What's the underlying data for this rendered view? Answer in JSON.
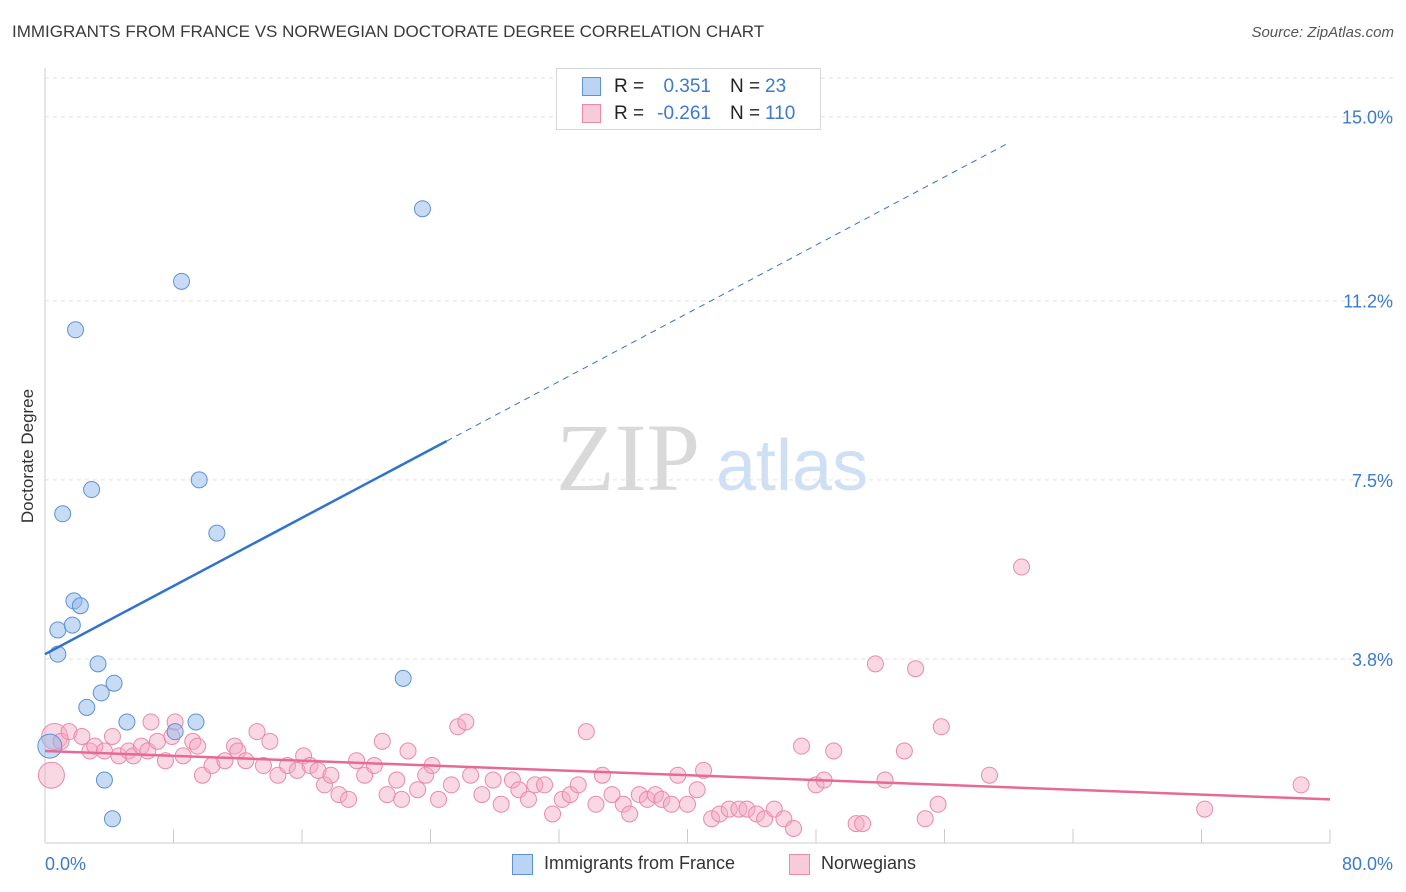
{
  "title": "IMMIGRANTS FROM FRANCE VS NORWEGIAN DOCTORATE DEGREE CORRELATION CHART",
  "source": "Source: ZipAtlas.com",
  "watermark": {
    "zip": "ZIP",
    "atlas": "atlas"
  },
  "legend_top": {
    "rows": [
      {
        "r_label": "R =",
        "r_value": "0.351",
        "n_label": "N =",
        "n_value": "23",
        "color": "#8fb8ec"
      },
      {
        "r_label": "R =",
        "r_value": "-0.261",
        "n_label": "N =",
        "n_value": "110",
        "color": "#f4a9c0"
      }
    ]
  },
  "legend_bottom": {
    "items": [
      {
        "label": "Immigrants from France",
        "color": "#8fb8ec"
      },
      {
        "label": "Norwegians",
        "color": "#f4a9c0"
      }
    ]
  },
  "chart_data": {
    "type": "scatter",
    "title": "IMMIGRANTS FROM FRANCE VS NORWEGIAN DOCTORATE DEGREE CORRELATION CHART",
    "xlabel": "",
    "ylabel": "Doctorate Degree",
    "xlim": [
      0,
      80
    ],
    "ylim": [
      0,
      15.8
    ],
    "x_tick_labels": [
      {
        "value": 0,
        "label": "0.0%"
      },
      {
        "value": 80,
        "label": "80.0%"
      }
    ],
    "y_tick_labels": [
      {
        "value": 3.8,
        "label": "3.8%"
      },
      {
        "value": 7.5,
        "label": "7.5%"
      },
      {
        "value": 11.2,
        "label": "11.2%"
      },
      {
        "value": 15.0,
        "label": "15.0%"
      }
    ],
    "grid": true,
    "series": [
      {
        "name": "Immigrants from France",
        "color": "#8fb8ec",
        "stroke": "#5b92d8",
        "line_color": "#2f72d0",
        "trend": {
          "x0": 0,
          "y0": 3.9,
          "x1": 25,
          "y1": 8.3,
          "extend_to_x": 60
        },
        "points": [
          [
            0.3,
            2.0
          ],
          [
            0.8,
            3.9
          ],
          [
            0.8,
            4.4
          ],
          [
            1.7,
            4.5
          ],
          [
            1.8,
            5.0
          ],
          [
            2.2,
            4.9
          ],
          [
            1.1,
            6.8
          ],
          [
            2.9,
            7.3
          ],
          [
            1.9,
            10.6
          ],
          [
            8.5,
            11.6
          ],
          [
            23.5,
            13.1
          ],
          [
            9.6,
            7.5
          ],
          [
            10.7,
            6.4
          ],
          [
            3.3,
            3.7
          ],
          [
            2.6,
            2.8
          ],
          [
            4.3,
            3.3
          ],
          [
            3.5,
            3.1
          ],
          [
            5.1,
            2.5
          ],
          [
            9.4,
            2.5
          ],
          [
            8.1,
            2.3
          ],
          [
            22.3,
            3.4
          ],
          [
            3.7,
            1.3
          ],
          [
            4.2,
            0.5
          ]
        ]
      },
      {
        "name": "Norwegians",
        "color": "#f4a9c0",
        "stroke": "#e98aa8",
        "line_color": "#e76a93",
        "trend": {
          "x0": 0,
          "y0": 1.9,
          "x1": 80,
          "y1": 0.9
        },
        "points": [
          [
            0.4,
            1.4
          ],
          [
            0.6,
            2.2
          ],
          [
            1.0,
            2.1
          ],
          [
            1.5,
            2.3
          ],
          [
            2.3,
            2.2
          ],
          [
            2.8,
            1.9
          ],
          [
            3.1,
            2.0
          ],
          [
            3.7,
            1.9
          ],
          [
            4.2,
            2.2
          ],
          [
            4.6,
            1.8
          ],
          [
            5.2,
            1.9
          ],
          [
            5.5,
            1.8
          ],
          [
            6.0,
            2.0
          ],
          [
            6.4,
            1.9
          ],
          [
            6.6,
            2.5
          ],
          [
            7.0,
            2.1
          ],
          [
            7.5,
            1.7
          ],
          [
            7.9,
            2.2
          ],
          [
            8.1,
            2.5
          ],
          [
            8.6,
            1.8
          ],
          [
            9.2,
            2.1
          ],
          [
            9.5,
            2.0
          ],
          [
            9.8,
            1.4
          ],
          [
            10.4,
            1.6
          ],
          [
            11.2,
            1.7
          ],
          [
            11.8,
            2.0
          ],
          [
            12.0,
            1.9
          ],
          [
            12.5,
            1.7
          ],
          [
            13.2,
            2.3
          ],
          [
            13.6,
            1.6
          ],
          [
            14.0,
            2.1
          ],
          [
            14.5,
            1.4
          ],
          [
            15.1,
            1.6
          ],
          [
            15.7,
            1.5
          ],
          [
            16.1,
            1.8
          ],
          [
            16.5,
            1.6
          ],
          [
            17.0,
            1.5
          ],
          [
            17.4,
            1.2
          ],
          [
            17.8,
            1.4
          ],
          [
            18.3,
            1.0
          ],
          [
            18.9,
            0.9
          ],
          [
            19.4,
            1.7
          ],
          [
            19.9,
            1.4
          ],
          [
            20.5,
            1.6
          ],
          [
            21.0,
            2.1
          ],
          [
            21.3,
            1.0
          ],
          [
            21.9,
            1.3
          ],
          [
            22.2,
            0.9
          ],
          [
            22.6,
            1.9
          ],
          [
            23.2,
            1.1
          ],
          [
            23.7,
            1.4
          ],
          [
            24.1,
            1.6
          ],
          [
            24.5,
            0.9
          ],
          [
            25.3,
            1.2
          ],
          [
            25.7,
            2.4
          ],
          [
            26.2,
            2.5
          ],
          [
            26.5,
            1.4
          ],
          [
            27.2,
            1.0
          ],
          [
            27.9,
            1.3
          ],
          [
            28.4,
            0.8
          ],
          [
            29.1,
            1.3
          ],
          [
            29.5,
            1.1
          ],
          [
            30.1,
            0.9
          ],
          [
            30.5,
            1.2
          ],
          [
            31.1,
            1.2
          ],
          [
            31.6,
            0.6
          ],
          [
            32.2,
            0.9
          ],
          [
            32.7,
            1.0
          ],
          [
            33.2,
            1.2
          ],
          [
            33.7,
            2.3
          ],
          [
            34.3,
            0.8
          ],
          [
            34.7,
            1.4
          ],
          [
            35.3,
            1.0
          ],
          [
            36.0,
            0.8
          ],
          [
            36.4,
            0.6
          ],
          [
            37.0,
            1.0
          ],
          [
            37.5,
            0.9
          ],
          [
            38.0,
            1.0
          ],
          [
            38.4,
            0.9
          ],
          [
            39.0,
            0.8
          ],
          [
            39.4,
            1.4
          ],
          [
            40.0,
            0.8
          ],
          [
            40.6,
            1.1
          ],
          [
            41.0,
            1.5
          ],
          [
            41.5,
            0.5
          ],
          [
            42.0,
            0.6
          ],
          [
            42.6,
            0.7
          ],
          [
            43.2,
            0.7
          ],
          [
            43.7,
            0.7
          ],
          [
            44.3,
            0.6
          ],
          [
            44.8,
            0.5
          ],
          [
            45.4,
            0.7
          ],
          [
            46.0,
            0.5
          ],
          [
            46.6,
            0.3
          ],
          [
            47.1,
            2.0
          ],
          [
            48.0,
            1.2
          ],
          [
            48.5,
            1.3
          ],
          [
            49.1,
            1.9
          ],
          [
            50.5,
            0.4
          ],
          [
            50.9,
            0.4
          ],
          [
            52.3,
            1.3
          ],
          [
            51.7,
            3.7
          ],
          [
            53.5,
            1.9
          ],
          [
            54.2,
            3.6
          ],
          [
            54.8,
            0.5
          ],
          [
            55.6,
            0.8
          ],
          [
            55.8,
            2.4
          ],
          [
            58.8,
            1.4
          ],
          [
            60.8,
            5.7
          ],
          [
            72.2,
            0.7
          ],
          [
            78.2,
            1.2
          ]
        ]
      }
    ]
  }
}
